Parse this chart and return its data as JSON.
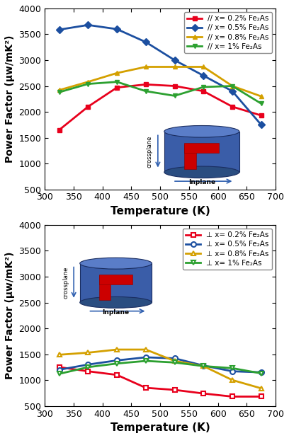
{
  "temp": [
    325,
    375,
    425,
    475,
    525,
    575,
    625,
    675
  ],
  "parallel": {
    "p02": [
      1650,
      2100,
      2470,
      2530,
      2500,
      2400,
      2100,
      1930
    ],
    "p05": [
      3590,
      3680,
      3600,
      3350,
      3000,
      2700,
      2400,
      1750
    ],
    "p08": [
      2420,
      2580,
      2750,
      2870,
      2870,
      2870,
      2500,
      2300
    ],
    "p1": [
      2380,
      2540,
      2580,
      2400,
      2310,
      2480,
      2500,
      2160
    ]
  },
  "perp": {
    "p02": [
      1250,
      1170,
      1100,
      850,
      810,
      740,
      680,
      680
    ],
    "p05": [
      1200,
      1300,
      1380,
      1440,
      1420,
      1280,
      1170,
      1150
    ],
    "p08": [
      1490,
      1530,
      1590,
      1590,
      1370,
      1270,
      1000,
      840
    ],
    "p1": [
      1120,
      1250,
      1320,
      1370,
      1340,
      1270,
      1230,
      1130
    ]
  },
  "colors": {
    "p02": "#e8001c",
    "p05": "#1c4fa0",
    "p08": "#d4a000",
    "p1": "#2ca030"
  },
  "ylim": [
    500,
    4000
  ],
  "xlim": [
    300,
    700
  ],
  "xticks": [
    300,
    350,
    400,
    450,
    500,
    550,
    600,
    650,
    700
  ],
  "yticks": [
    500,
    1000,
    1500,
    2000,
    2500,
    3000,
    3500,
    4000
  ],
  "ylabel": "Power Factor (μw/mK²)",
  "xlabel": "Temperature (K)",
  "legend_parallel": [
    "// x= 0.2% Fe₂As",
    "// x= 0.5% Fe₂As",
    "// x= 0.8% Fe₂As",
    "// x= 1% Fe₂As"
  ],
  "legend_perp": [
    "⊥ x= 0.2% Fe₂As",
    "⊥ x= 0.5% Fe₂As",
    "⊥ x= 0.8% Fe₂As",
    "⊥ x= 1% Fe₂As"
  ],
  "cyl_color": "#3a5da8",
  "cyl_top_color": "#5a7dc8",
  "cyl_bottom_color": "#2a4d98",
  "red_color": "#cc0000"
}
